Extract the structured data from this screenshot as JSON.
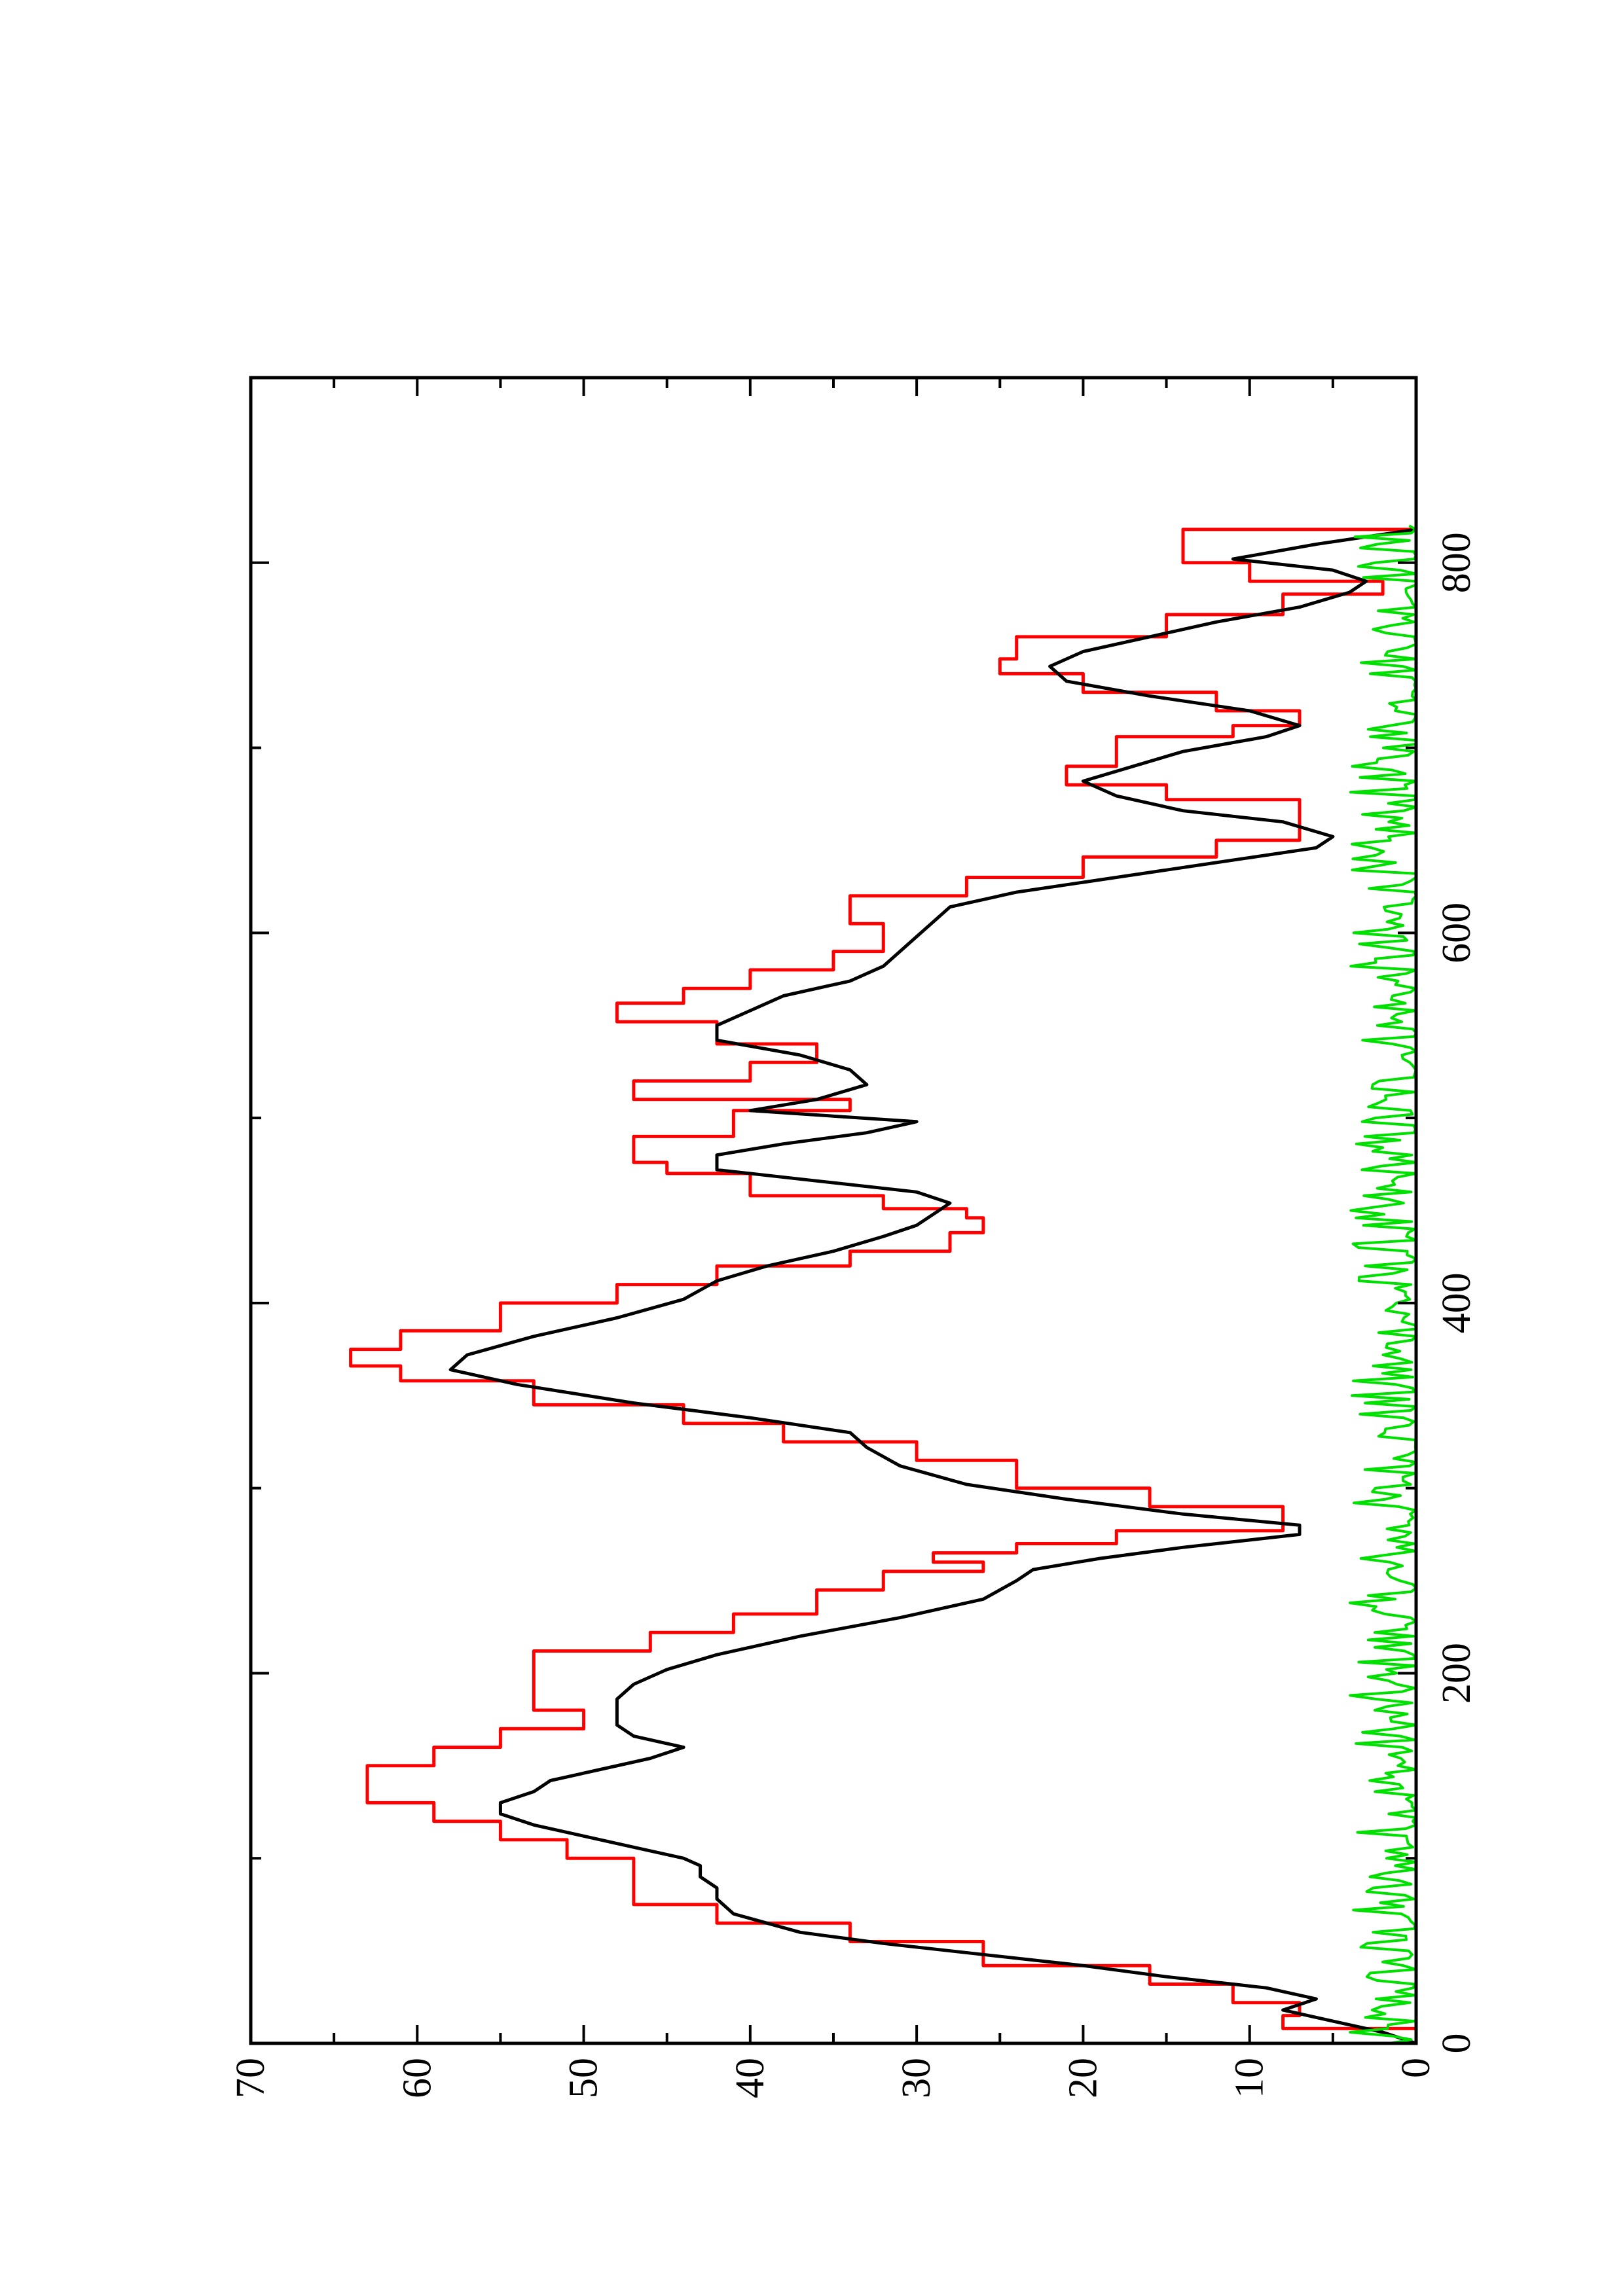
{
  "chart_data": {
    "type": "line",
    "orientation": "rotated-90-ccw",
    "title": "",
    "xlabel": "",
    "ylabel": "",
    "xlim": [
      0,
      900
    ],
    "ylim": [
      0,
      70
    ],
    "x_ticks": [
      0,
      200,
      400,
      600,
      800
    ],
    "x_tick_labels": [
      "0",
      "200",
      "400",
      "600",
      "800"
    ],
    "x_minor_ticks": [
      100,
      300,
      500,
      700
    ],
    "y_ticks": [
      0,
      10,
      20,
      30,
      40,
      50,
      60,
      70
    ],
    "y_tick_labels": [
      "0",
      "10",
      "20",
      "30",
      "40",
      "50",
      "60",
      "70"
    ],
    "y_minor_ticks": [
      5,
      15,
      25,
      35,
      45,
      55,
      65
    ],
    "grid": false,
    "series": [
      {
        "color": "#ff0000",
        "style": "step",
        "x": [
          0,
          8,
          15,
          22,
          32,
          42,
          55,
          65,
          75,
          85,
          100,
          110,
          120,
          130,
          137,
          150,
          160,
          170,
          180,
          200,
          212,
          222,
          232,
          245,
          255,
          260,
          265,
          270,
          277,
          282,
          290,
          300,
          315,
          325,
          335,
          345,
          358,
          366,
          375,
          385,
          400,
          410,
          420,
          428,
          438,
          446,
          451,
          458,
          470,
          476,
          490,
          504,
          510,
          520,
          530,
          540,
          552,
          562,
          570,
          580,
          590,
          605,
          620,
          630,
          641,
          650,
          660,
          672,
          680,
          690,
          706,
          712,
          720,
          730,
          740,
          748,
          760,
          772,
          783,
          790,
          800,
          808,
          818
        ],
        "y": [
          0,
          8,
          7,
          11,
          16,
          26,
          34,
          42,
          47,
          47,
          51,
          55,
          59,
          63,
          63,
          59,
          55,
          50,
          53,
          53,
          46,
          41,
          36,
          32,
          26,
          29,
          24,
          18,
          8,
          8,
          16,
          24,
          30,
          38,
          44,
          53,
          61,
          64,
          61,
          55,
          48,
          42,
          34,
          28,
          26,
          27,
          32,
          40,
          45,
          47,
          41,
          34,
          47,
          40,
          36,
          42,
          48,
          44,
          40,
          35,
          32,
          34,
          27,
          20,
          12,
          7,
          7,
          15,
          21,
          18,
          11,
          7,
          12,
          20,
          25,
          24,
          15,
          8,
          2,
          10,
          14,
          14,
          0
        ]
      },
      {
        "color": "#000000",
        "style": "line",
        "x": [
          0,
          6,
          12,
          18,
          24,
          30,
          36,
          42,
          48,
          54,
          60,
          70,
          78,
          84,
          90,
          96,
          100,
          106,
          112,
          118,
          124,
          130,
          136,
          142,
          148,
          154,
          160,
          166,
          172,
          178,
          186,
          194,
          202,
          210,
          220,
          230,
          240,
          250,
          256,
          262,
          268,
          275,
          280,
          286,
          294,
          302,
          312,
          322,
          330,
          338,
          346,
          356,
          364,
          372,
          382,
          392,
          402,
          412,
          420,
          428,
          436,
          442,
          448,
          454,
          460,
          466,
          472,
          480,
          486,
          492,
          498,
          504,
          510,
          518,
          526,
          534,
          542,
          550,
          558,
          566,
          574,
          582,
          590,
          598,
          606,
          614,
          622,
          630,
          638,
          646,
          652,
          660,
          666,
          674,
          682,
          690,
          698,
          706,
          712,
          720,
          728,
          736,
          744,
          752,
          760,
          768,
          776,
          784,
          790,
          796,
          802,
          810,
          818
        ],
        "y": [
          0,
          2,
          5,
          8,
          6,
          9,
          15,
          20,
          26,
          32,
          37,
          41,
          42,
          42,
          43,
          43,
          44,
          47,
          50,
          53,
          55,
          55,
          53,
          52,
          49,
          46,
          44,
          47,
          48,
          48,
          48,
          47,
          45,
          42,
          37,
          31,
          26,
          24,
          23,
          19,
          14,
          7,
          7,
          14,
          21,
          27,
          31,
          33,
          34,
          40,
          47,
          54,
          58,
          57,
          53,
          48,
          44,
          42,
          39,
          35,
          32,
          30,
          29,
          28,
          30,
          36,
          42,
          42,
          38,
          33,
          30,
          40,
          36,
          33,
          34,
          37,
          42,
          42,
          40,
          38,
          34,
          32,
          31,
          30,
          29,
          28,
          24,
          18,
          12,
          6,
          5,
          8,
          14,
          18,
          20,
          17,
          14,
          9,
          7,
          10,
          16,
          21,
          22,
          20,
          16,
          12,
          7,
          4,
          3,
          5,
          11,
          6,
          0
        ]
      },
      {
        "color": "#00e000",
        "style": "line",
        "noise_amplitude": [
          0,
          4
        ],
        "x_range": [
          0,
          820
        ]
      }
    ]
  }
}
